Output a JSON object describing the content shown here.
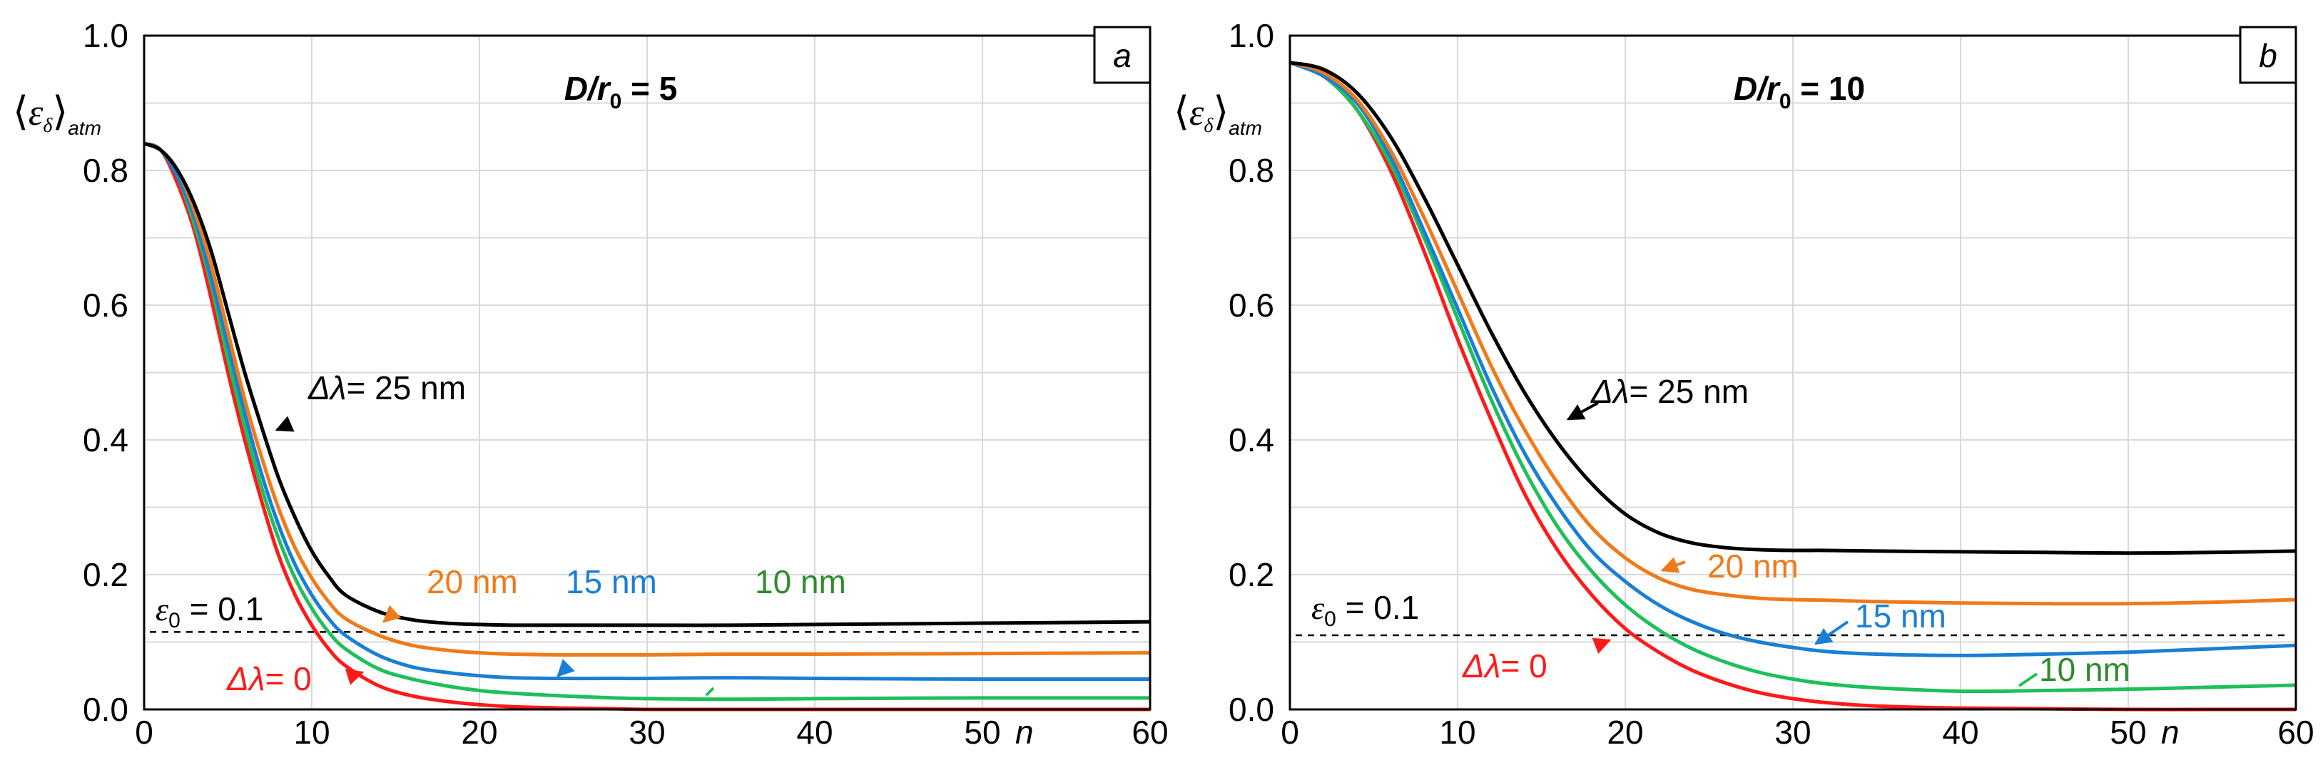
{
  "chart_data": [
    {
      "type": "line",
      "panel_label": "a",
      "title": "D/r0 = 5",
      "title_parts": {
        "main": "D/r",
        "sub": "0",
        "rest": " = 5"
      },
      "ylabel": "⟨ε_δ⟩_atm",
      "ylabel_parts": {
        "main": "ε",
        "sub1": "δ",
        "sub2": "atm"
      },
      "xlabel": "n",
      "xlim": [
        0,
        60
      ],
      "ylim": [
        0,
        1.0
      ],
      "xticks": [
        "0",
        "10",
        "20",
        "30",
        "40",
        "50",
        "60"
      ],
      "yticks": [
        "0.0",
        "0.2",
        "0.4",
        "0.6",
        "0.8",
        "1.0"
      ],
      "grid": true,
      "threshold": {
        "value": 0.115,
        "label_symbol": "ε",
        "label_sub": "0",
        "label_rest": " = 0.1"
      },
      "series": [
        {
          "name": "Δλ = 0",
          "color": "#ff1a1a",
          "x": [
            0,
            1,
            2,
            3,
            4,
            5,
            6,
            7,
            8,
            9,
            10,
            11,
            12,
            14,
            16,
            18,
            20,
            22,
            25,
            28,
            30,
            35,
            40,
            50,
            60
          ],
          "values": [
            0.84,
            0.83,
            0.78,
            0.71,
            0.61,
            0.5,
            0.4,
            0.31,
            0.23,
            0.17,
            0.125,
            0.09,
            0.065,
            0.035,
            0.02,
            0.012,
            0.007,
            0.004,
            0.002,
            0.001,
            0,
            0,
            0,
            0,
            0
          ]
        },
        {
          "name": "10 nm",
          "color": "#1fbf5a",
          "x": [
            0,
            1,
            2,
            3,
            4,
            5,
            6,
            7,
            8,
            9,
            10,
            11,
            12,
            14,
            16,
            18,
            20,
            22,
            25,
            28,
            30,
            35,
            40,
            50,
            60
          ],
          "values": [
            0.84,
            0.83,
            0.79,
            0.72,
            0.63,
            0.52,
            0.42,
            0.33,
            0.255,
            0.195,
            0.15,
            0.115,
            0.09,
            0.06,
            0.045,
            0.035,
            0.028,
            0.024,
            0.02,
            0.017,
            0.016,
            0.015,
            0.016,
            0.017,
            0.017
          ]
        },
        {
          "name": "15 nm",
          "color": "#1a7fd4",
          "x": [
            0,
            1,
            2,
            3,
            4,
            5,
            6,
            7,
            8,
            9,
            10,
            11,
            12,
            14,
            16,
            18,
            20,
            22,
            25,
            28,
            30,
            35,
            40,
            50,
            60
          ],
          "values": [
            0.84,
            0.83,
            0.79,
            0.73,
            0.64,
            0.54,
            0.44,
            0.35,
            0.275,
            0.215,
            0.17,
            0.135,
            0.11,
            0.08,
            0.063,
            0.055,
            0.05,
            0.047,
            0.046,
            0.046,
            0.046,
            0.047,
            0.046,
            0.045,
            0.045
          ]
        },
        {
          "name": "20 nm",
          "color": "#f07a1a",
          "x": [
            0,
            1,
            2,
            3,
            4,
            5,
            6,
            7,
            8,
            9,
            10,
            11,
            12,
            14,
            16,
            18,
            20,
            22,
            25,
            28,
            30,
            35,
            40,
            50,
            60
          ],
          "values": [
            0.84,
            0.83,
            0.8,
            0.74,
            0.66,
            0.56,
            0.46,
            0.375,
            0.3,
            0.24,
            0.195,
            0.16,
            0.135,
            0.11,
            0.095,
            0.088,
            0.084,
            0.082,
            0.081,
            0.081,
            0.081,
            0.082,
            0.082,
            0.083,
            0.084
          ]
        },
        {
          "name": "Δλ = 25 nm",
          "color": "#000000",
          "x": [
            0,
            1,
            2,
            3,
            4,
            5,
            6,
            7,
            8,
            9,
            10,
            11,
            12,
            14,
            16,
            18,
            20,
            22,
            25,
            28,
            30,
            35,
            40,
            50,
            60
          ],
          "values": [
            0.84,
            0.83,
            0.8,
            0.75,
            0.68,
            0.59,
            0.5,
            0.42,
            0.345,
            0.285,
            0.235,
            0.198,
            0.17,
            0.145,
            0.133,
            0.128,
            0.126,
            0.125,
            0.125,
            0.125,
            0.125,
            0.125,
            0.126,
            0.128,
            0.13
          ]
        }
      ],
      "annotations": [
        {
          "series": "Δλ = 25 nm",
          "prefix": "Δλ",
          "text": "= 25 nm"
        },
        {
          "series": "20 nm",
          "text": "20 nm"
        },
        {
          "series": "15 nm",
          "text": "15 nm"
        },
        {
          "series": "10 nm",
          "text": "10 nm"
        },
        {
          "series": "Δλ = 0",
          "prefix": "Δλ",
          "text": "= 0"
        }
      ]
    },
    {
      "type": "line",
      "panel_label": "b",
      "title": "D/r0 = 10",
      "title_parts": {
        "main": "D/r",
        "sub": "0",
        "rest": " = 10"
      },
      "ylabel": "⟨ε_δ⟩_atm",
      "ylabel_parts": {
        "main": "ε",
        "sub1": "δ",
        "sub2": "atm"
      },
      "xlabel": "n",
      "xlim": [
        0,
        60
      ],
      "ylim": [
        0,
        1.0
      ],
      "xticks": [
        "0",
        "10",
        "20",
        "30",
        "40",
        "50",
        "60"
      ],
      "yticks": [
        "0.0",
        "0.2",
        "0.4",
        "0.6",
        "0.8",
        "1.0"
      ],
      "grid": true,
      "threshold": {
        "value": 0.11,
        "label_symbol": "ε",
        "label_sub": "0",
        "label_rest": " = 0.1"
      },
      "series": [
        {
          "name": "Δλ = 0",
          "color": "#ff1a1a",
          "x": [
            0,
            2,
            4,
            6,
            8,
            10,
            12,
            14,
            16,
            18,
            20,
            22,
            24,
            26,
            28,
            30,
            32,
            35,
            40,
            45,
            50,
            55,
            60
          ],
          "values": [
            0.96,
            0.94,
            0.89,
            0.8,
            0.68,
            0.55,
            0.43,
            0.32,
            0.235,
            0.17,
            0.12,
            0.085,
            0.058,
            0.039,
            0.025,
            0.016,
            0.01,
            0.005,
            0.002,
            0.001,
            0,
            0,
            0
          ]
        },
        {
          "name": "10 nm",
          "color": "#1fbf5a",
          "x": [
            0,
            2,
            4,
            6,
            8,
            10,
            12,
            14,
            16,
            18,
            20,
            22,
            24,
            26,
            28,
            30,
            32,
            35,
            40,
            45,
            50,
            55,
            60
          ],
          "values": [
            0.96,
            0.94,
            0.89,
            0.81,
            0.7,
            0.58,
            0.46,
            0.355,
            0.27,
            0.205,
            0.155,
            0.118,
            0.09,
            0.07,
            0.055,
            0.045,
            0.038,
            0.032,
            0.027,
            0.028,
            0.03,
            0.033,
            0.036
          ]
        },
        {
          "name": "15 nm",
          "color": "#1a7fd4",
          "x": [
            0,
            2,
            4,
            6,
            8,
            10,
            12,
            14,
            16,
            18,
            20,
            22,
            24,
            26,
            28,
            30,
            32,
            35,
            40,
            45,
            50,
            55,
            60
          ],
          "values": [
            0.96,
            0.94,
            0.9,
            0.82,
            0.71,
            0.595,
            0.48,
            0.38,
            0.3,
            0.235,
            0.19,
            0.155,
            0.13,
            0.112,
            0.1,
            0.092,
            0.086,
            0.082,
            0.08,
            0.082,
            0.085,
            0.09,
            0.095
          ]
        },
        {
          "name": "20 nm",
          "color": "#f07a1a",
          "x": [
            0,
            2,
            4,
            6,
            8,
            10,
            12,
            14,
            16,
            18,
            20,
            22,
            24,
            26,
            28,
            30,
            32,
            35,
            40,
            45,
            50,
            55,
            60
          ],
          "values": [
            0.96,
            0.945,
            0.905,
            0.83,
            0.73,
            0.62,
            0.51,
            0.415,
            0.335,
            0.27,
            0.225,
            0.195,
            0.178,
            0.17,
            0.165,
            0.163,
            0.162,
            0.16,
            0.158,
            0.157,
            0.157,
            0.159,
            0.163
          ]
        },
        {
          "name": "Δλ = 25 nm",
          "color": "#000000",
          "x": [
            0,
            2,
            4,
            6,
            8,
            10,
            12,
            14,
            16,
            18,
            20,
            22,
            24,
            26,
            28,
            30,
            32,
            35,
            40,
            45,
            50,
            55,
            60
          ],
          "values": [
            0.96,
            0.95,
            0.915,
            0.85,
            0.76,
            0.66,
            0.56,
            0.47,
            0.395,
            0.335,
            0.29,
            0.262,
            0.247,
            0.24,
            0.237,
            0.236,
            0.236,
            0.235,
            0.234,
            0.233,
            0.232,
            0.233,
            0.235
          ]
        }
      ],
      "annotations": [
        {
          "series": "Δλ = 25 nm",
          "prefix": "Δλ",
          "text": "= 25 nm"
        },
        {
          "series": "20 nm",
          "text": "20 nm"
        },
        {
          "series": "15 nm",
          "text": "15 nm"
        },
        {
          "series": "10 nm",
          "text": "10 nm"
        },
        {
          "series": "Δλ = 0",
          "prefix": "Δλ",
          "text": "= 0"
        }
      ]
    }
  ]
}
